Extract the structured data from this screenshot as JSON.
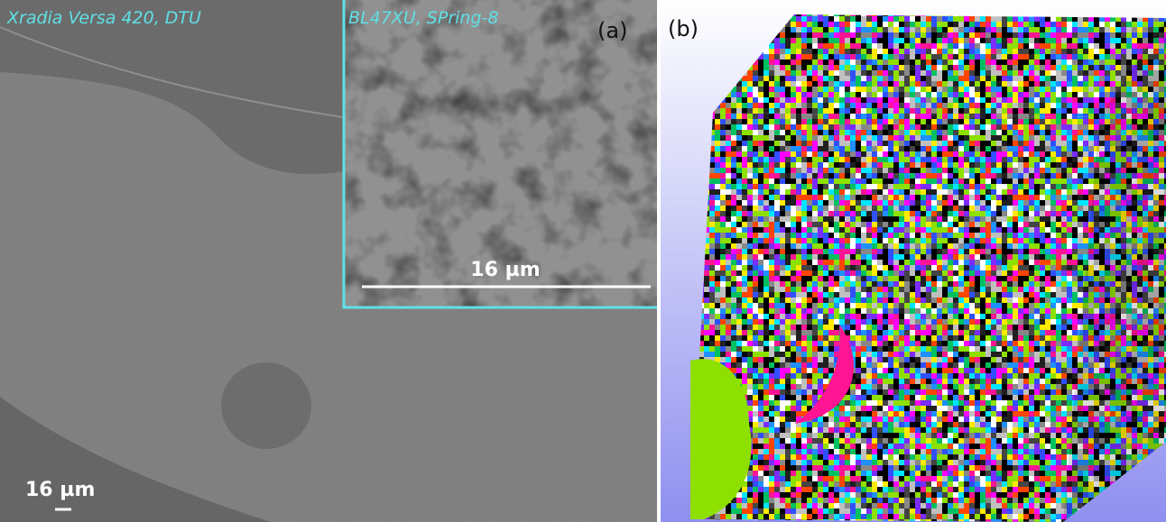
{
  "panel_a": {
    "label": "(a)",
    "caption": "Xradia Versa 420, DTU",
    "scale_bar": "16 µm",
    "inset": {
      "caption": "BL47XU, SPring-8",
      "scale_bar": "16 µm"
    }
  },
  "panel_b": {
    "label": "(b)"
  }
}
